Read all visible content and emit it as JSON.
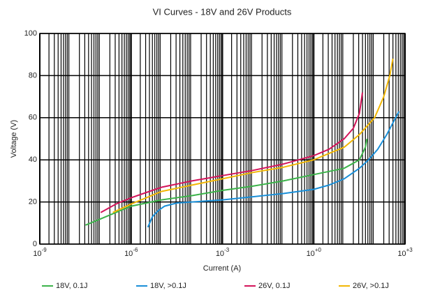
{
  "chart_data": {
    "type": "line",
    "title": "VI Curves - 18V and 26V Products",
    "x_label": "Current (A)",
    "y_label": "Voltage (V)",
    "xscale": "log",
    "xlim": [
      1e-09,
      1000
    ],
    "xticks": [
      {
        "value": 1e-09,
        "label": "10-9"
      },
      {
        "value": 1e-06,
        "label": "10-6"
      },
      {
        "value": 0.001,
        "label": "10-3"
      },
      {
        "value": 1,
        "label": "10+0"
      },
      {
        "value": 1000,
        "label": "10+3"
      }
    ],
    "ylim": [
      0,
      100
    ],
    "yticks": [
      0,
      20,
      40,
      60,
      80,
      100
    ],
    "grid": true,
    "legend": "bottom",
    "series": [
      {
        "name": "18V, 0.1J",
        "color": "#3cb34a",
        "x": [
          3.16e-08,
          1e-07,
          3.16e-07,
          1e-06,
          1e-05,
          0.0001,
          0.001,
          0.01,
          0.1,
          1,
          10,
          31.6,
          50.1,
          56.2
        ],
        "values": [
          9,
          12,
          15,
          18,
          21,
          23,
          25.5,
          27.5,
          30,
          33,
          36,
          40,
          46,
          50
        ]
      },
      {
        "name": "18V, >0.1J",
        "color": "#1a8fd8",
        "x": [
          3.55e-06,
          5.01e-06,
          7.94e-06,
          1.26e-05,
          3.16e-05,
          0.0001,
          0.001,
          0.01,
          0.1,
          1,
          3.16,
          10,
          31.6,
          63.1,
          125.9,
          251,
          631
        ],
        "values": [
          8,
          13,
          16,
          18,
          19.5,
          20,
          21,
          22.5,
          24,
          26,
          28,
          31,
          36,
          40,
          45,
          52,
          63
        ]
      },
      {
        "name": "26V, 0.1J",
        "color": "#d4145a",
        "x": [
          1e-07,
          3.16e-07,
          1e-06,
          3.16e-06,
          1e-05,
          0.0001,
          0.001,
          0.01,
          0.1,
          1,
          3.16,
          10,
          20,
          31.6,
          39.8
        ],
        "values": [
          15,
          19,
          22,
          24.5,
          27,
          30,
          32.5,
          35,
          38,
          42,
          45,
          50,
          55,
          62,
          72
        ]
      },
      {
        "name": "26V, >0.1J",
        "color": "#f2b705",
        "x": [
          2.51e-07,
          1e-06,
          3.16e-06,
          1e-05,
          0.0001,
          0.001,
          0.01,
          0.1,
          1,
          3.16,
          10,
          31.6,
          100,
          200,
          316,
          398
        ],
        "values": [
          15,
          19,
          22,
          25,
          28,
          31,
          34,
          36.5,
          40,
          43,
          46,
          52,
          60,
          70,
          80,
          88
        ]
      }
    ]
  }
}
